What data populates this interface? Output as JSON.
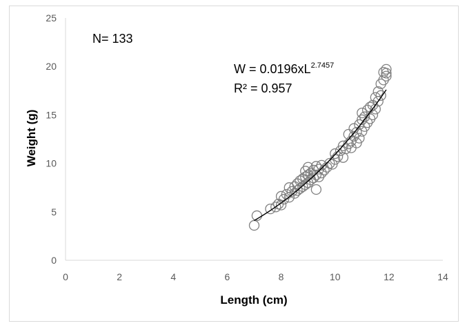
{
  "chart_data": {
    "type": "scatter",
    "xlabel": "Length (cm)",
    "ylabel": "Weight (g)",
    "xlim": [
      0,
      14
    ],
    "ylim": [
      0,
      25
    ],
    "x_ticks": [
      0,
      2,
      4,
      6,
      8,
      10,
      12,
      14
    ],
    "y_ticks": [
      0,
      5,
      10,
      15,
      20,
      25
    ],
    "grid": false,
    "legend": "none",
    "marker": "open-circle",
    "marker_color": "#808080",
    "trendline": {
      "type": "power",
      "a": 0.0196,
      "b": 2.7457,
      "x_range": [
        7.0,
        11.9
      ],
      "color": "#000000"
    },
    "annotations": {
      "sample_size": "N= 133",
      "equation_main": "W = 0.0196xL",
      "equation_exponent": "2.7457",
      "r_squared": "R² = 0.957"
    },
    "points": [
      [
        7.0,
        3.6
      ],
      [
        7.1,
        4.6
      ],
      [
        7.6,
        5.3
      ],
      [
        7.8,
        5.5
      ],
      [
        7.9,
        5.8
      ],
      [
        8.0,
        5.7
      ],
      [
        8.0,
        6.6
      ],
      [
        8.1,
        6.3
      ],
      [
        8.2,
        6.8
      ],
      [
        8.3,
        6.5
      ],
      [
        8.3,
        7.5
      ],
      [
        8.4,
        7.1
      ],
      [
        8.5,
        6.9
      ],
      [
        8.5,
        7.6
      ],
      [
        8.6,
        7.2
      ],
      [
        8.6,
        7.9
      ],
      [
        8.7,
        7.4
      ],
      [
        8.7,
        8.2
      ],
      [
        8.8,
        7.6
      ],
      [
        8.8,
        8.4
      ],
      [
        8.9,
        7.8
      ],
      [
        8.9,
        8.6
      ],
      [
        8.9,
        9.2
      ],
      [
        9.0,
        8.0
      ],
      [
        9.0,
        8.8
      ],
      [
        9.0,
        9.6
      ],
      [
        9.1,
        8.3
      ],
      [
        9.1,
        9.0
      ],
      [
        9.2,
        8.5
      ],
      [
        9.2,
        9.3
      ],
      [
        9.3,
        7.3
      ],
      [
        9.3,
        8.8
      ],
      [
        9.3,
        9.7
      ],
      [
        9.4,
        8.6
      ],
      [
        9.4,
        9.4
      ],
      [
        9.5,
        9.0
      ],
      [
        9.5,
        9.8
      ],
      [
        9.6,
        9.3
      ],
      [
        9.7,
        9.6
      ],
      [
        9.8,
        10.0
      ],
      [
        9.9,
        9.9
      ],
      [
        10.0,
        10.4
      ],
      [
        10.0,
        11.0
      ],
      [
        10.1,
        10.7
      ],
      [
        10.2,
        11.3
      ],
      [
        10.3,
        10.6
      ],
      [
        10.3,
        11.8
      ],
      [
        10.4,
        11.5
      ],
      [
        10.5,
        12.0
      ],
      [
        10.5,
        13.0
      ],
      [
        10.6,
        12.3
      ],
      [
        10.6,
        11.6
      ],
      [
        10.7,
        12.8
      ],
      [
        10.7,
        13.6
      ],
      [
        10.8,
        12.1
      ],
      [
        10.8,
        13.2
      ],
      [
        10.9,
        12.6
      ],
      [
        10.9,
        14.0
      ],
      [
        11.0,
        13.3
      ],
      [
        11.0,
        14.5
      ],
      [
        11.0,
        15.2
      ],
      [
        11.1,
        13.8
      ],
      [
        11.1,
        14.8
      ],
      [
        11.2,
        14.2
      ],
      [
        11.2,
        15.5
      ],
      [
        11.3,
        14.6
      ],
      [
        11.3,
        15.8
      ],
      [
        11.4,
        15.0
      ],
      [
        11.4,
        16.0
      ],
      [
        11.5,
        15.6
      ],
      [
        11.5,
        16.8
      ],
      [
        11.6,
        16.4
      ],
      [
        11.6,
        17.4
      ],
      [
        11.7,
        17.0
      ],
      [
        11.7,
        18.2
      ],
      [
        11.8,
        18.6
      ],
      [
        11.8,
        19.4
      ],
      [
        11.9,
        19.0
      ],
      [
        11.9,
        19.7
      ],
      [
        11.9,
        19.3
      ]
    ]
  }
}
